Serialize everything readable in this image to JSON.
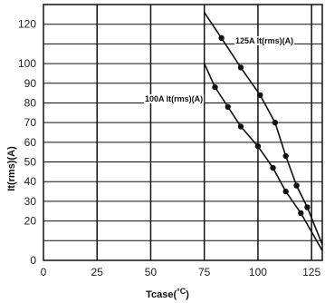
{
  "chart_data": {
    "type": "line",
    "title": "",
    "xlabel": "Tcase(",
    "xlabel_unit": "°C",
    "xlabel_close": ")",
    "ylabel": "It(rms)(A)",
    "xlim": [
      0,
      130
    ],
    "ylim": [
      0,
      130
    ],
    "x_ticks": [
      0,
      25,
      50,
      75,
      100,
      125
    ],
    "x_tick_labels": [
      "0",
      "25",
      "50",
      "75",
      "100",
      "125"
    ],
    "y_tick_labels": [
      {
        "value": 0,
        "label": "0"
      },
      {
        "value": 20,
        "label": "20"
      },
      {
        "value": 30,
        "label": "30"
      },
      {
        "value": 40,
        "label": "40"
      },
      {
        "value": 50,
        "label": "50"
      },
      {
        "value": 60,
        "label": "60"
      },
      {
        "value": 70,
        "label": "70"
      },
      {
        "value": 80,
        "label": "80"
      },
      {
        "value": 90,
        "label": "90"
      },
      {
        "value": 100,
        "label": "100"
      },
      {
        "value": 120,
        "label": "120"
      }
    ],
    "h_grid": [
      10,
      20,
      30,
      40,
      50,
      60,
      70,
      80,
      90,
      100,
      110,
      120
    ],
    "v_grid": [
      25,
      50,
      75,
      100,
      125
    ],
    "grid": true,
    "series": [
      {
        "name": "125A It(rms)(A)",
        "color": "#111111",
        "x": [
          75,
          83,
          92,
          101,
          108,
          113,
          118,
          123,
          130
        ],
        "y": [
          126,
          113,
          98,
          84,
          70,
          53,
          38,
          27,
          8
        ],
        "markers": [
          {
            "x": 83,
            "y": 113
          },
          {
            "x": 92,
            "y": 98
          },
          {
            "x": 101,
            "y": 84
          },
          {
            "x": 108,
            "y": 70
          },
          {
            "x": 113,
            "y": 53
          },
          {
            "x": 118,
            "y": 38
          },
          {
            "x": 123,
            "y": 27
          }
        ]
      },
      {
        "name": "100A It(rms)(A)",
        "color": "#111111",
        "x": [
          75,
          80,
          86,
          92,
          100,
          107,
          113,
          120,
          130
        ],
        "y": [
          100,
          88,
          78,
          68,
          58,
          47,
          35,
          24,
          5
        ],
        "markers": [
          {
            "x": 80,
            "y": 88
          },
          {
            "x": 86,
            "y": 78
          },
          {
            "x": 92,
            "y": 68
          },
          {
            "x": 100,
            "y": 58
          },
          {
            "x": 107,
            "y": 47
          },
          {
            "x": 113,
            "y": 35
          },
          {
            "x": 120,
            "y": 24
          }
        ]
      }
    ]
  }
}
